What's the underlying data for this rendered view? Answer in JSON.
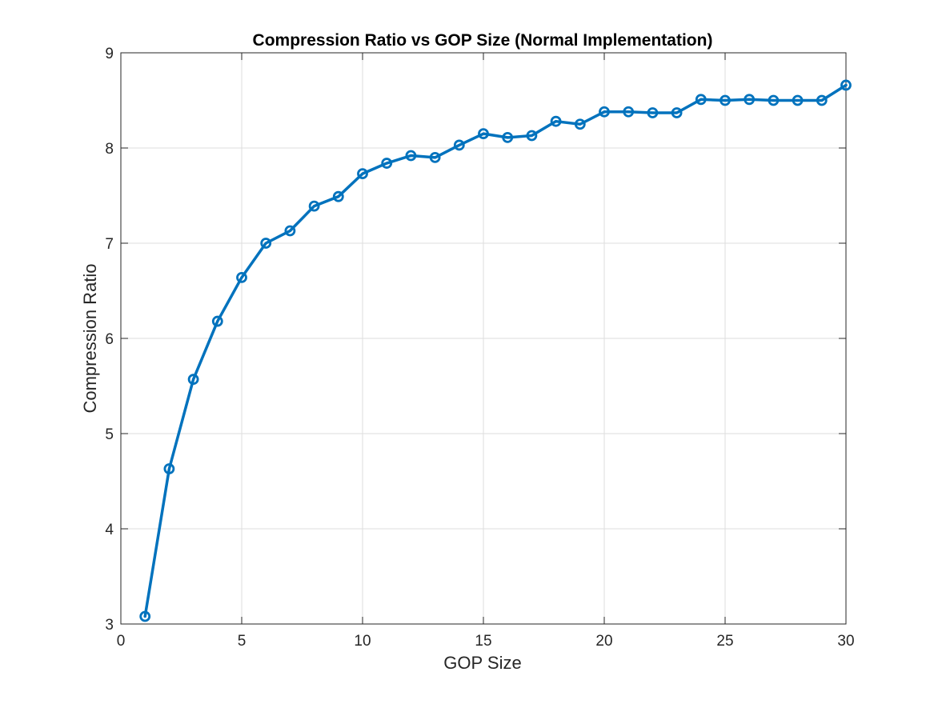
{
  "chart_data": {
    "type": "line",
    "title": "Compression Ratio vs GOP Size (Normal Implementation)",
    "xlabel": "GOP Size",
    "ylabel": "Compression Ratio",
    "xlim": [
      0,
      30
    ],
    "ylim": [
      3,
      9
    ],
    "xticks": [
      0,
      5,
      10,
      15,
      20,
      25,
      30
    ],
    "yticks": [
      3,
      4,
      5,
      6,
      7,
      8,
      9
    ],
    "grid": true,
    "marker": "circle",
    "colors": {
      "line": "#0072BD",
      "grid": "#dddddd",
      "axis": "#262626"
    },
    "series": [
      {
        "x": [
          1,
          2,
          3,
          4,
          5,
          6,
          7,
          8,
          9,
          10,
          11,
          12,
          13,
          14,
          15,
          16,
          17,
          18,
          19,
          20,
          21,
          22,
          23,
          24,
          25,
          26,
          27,
          28,
          29,
          30
        ],
        "values": [
          3.08,
          4.63,
          5.57,
          6.18,
          6.64,
          7.0,
          7.13,
          7.39,
          7.49,
          7.73,
          7.84,
          7.92,
          7.9,
          8.03,
          8.15,
          8.11,
          8.13,
          8.28,
          8.25,
          8.38,
          8.38,
          8.37,
          8.37,
          8.51,
          8.5,
          8.51,
          8.5,
          8.5,
          8.5,
          8.66
        ]
      }
    ]
  }
}
